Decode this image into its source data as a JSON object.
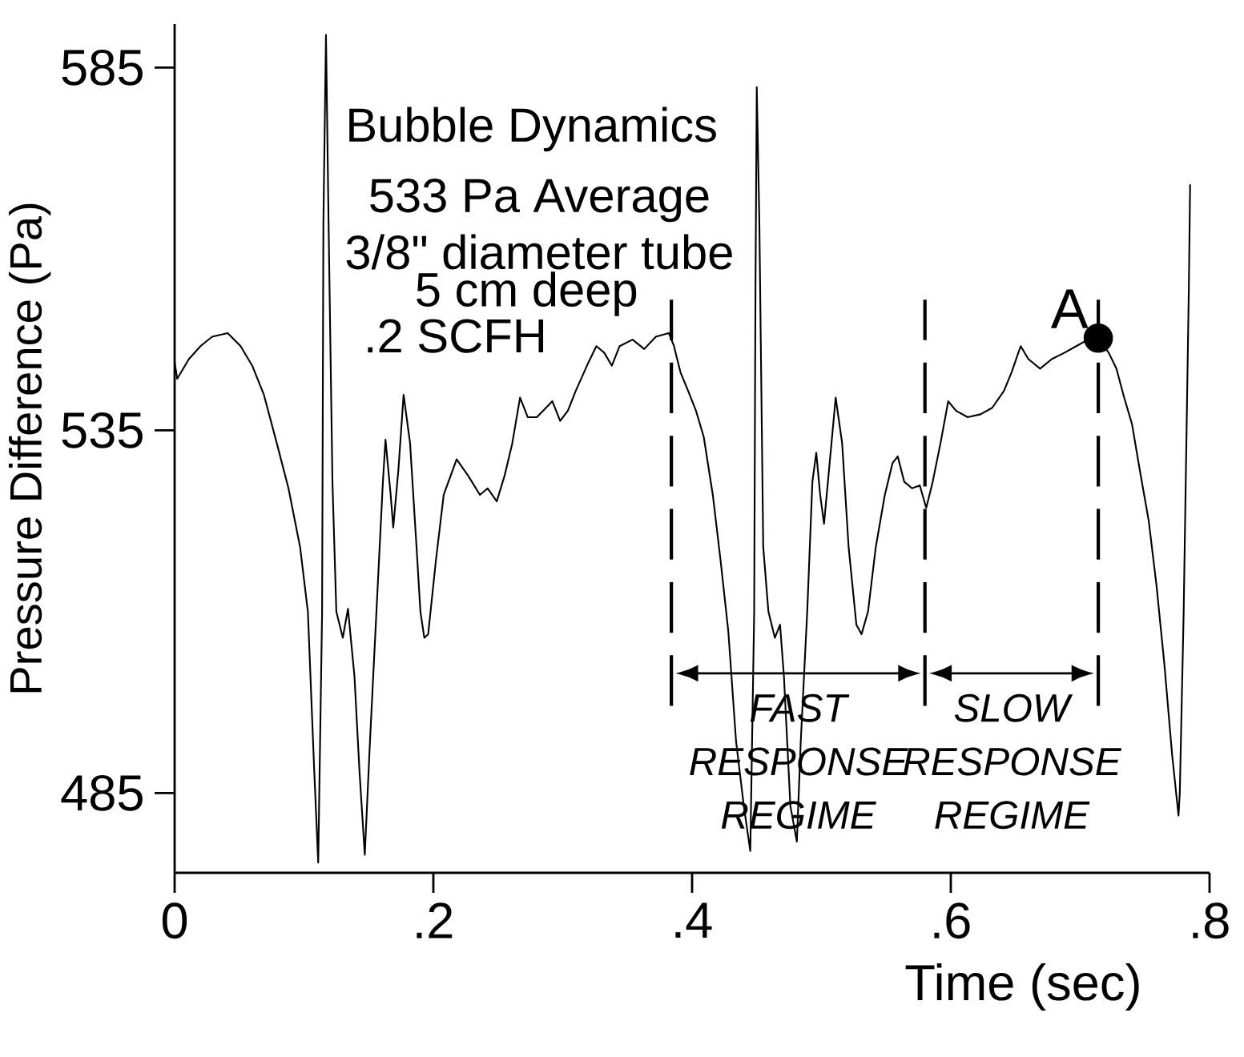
{
  "chart_data": {
    "type": "line",
    "xlabel": "Time (sec)",
    "ylabel": "Pressure Difference (Pa)",
    "annotations": [
      "Bubble Dynamics",
      "533 Pa Average",
      "3/8\" diameter tube",
      "5 cm deep",
      ".2   SCFH",
      {
        "text": "A",
        "x": 0.714,
        "y": 547.7
      },
      "FAST RESPONSE REGIME",
      "SLOW RESPONSE REGIME"
    ],
    "series": [
      {
        "type": "line",
        "color": "#000000",
        "line_style": "solid",
        "x": [
          0,
          0.002,
          0.011,
          0.02,
          0.029,
          0.041,
          0.051,
          0.06,
          0.069,
          0.079,
          0.088,
          0.097,
          0.103,
          0.108,
          0.111,
          0.114,
          0.115,
          0.117,
          0.119,
          0.122,
          0.125,
          0.13,
          0.134,
          0.139,
          0.143,
          0.147,
          0.151,
          0.156,
          0.161,
          0.163,
          0.167,
          0.169,
          0.173,
          0.177,
          0.182,
          0.187,
          0.19,
          0.193,
          0.196,
          0.202,
          0.208,
          0.218,
          0.227,
          0.236,
          0.242,
          0.249,
          0.255,
          0.261,
          0.267,
          0.273,
          0.28,
          0.292,
          0.298,
          0.304,
          0.31,
          0.32,
          0.326,
          0.332,
          0.338,
          0.344,
          0.354,
          0.363,
          0.372,
          0.382,
          0.386,
          0.391,
          0.397,
          0.403,
          0.409,
          0.416,
          0.422,
          0.428,
          0.434,
          0.44,
          0.445,
          0.448,
          0.449,
          0.45,
          0.452,
          0.455,
          0.459,
          0.464,
          0.468,
          0.471,
          0.476,
          0.481,
          0.484,
          0.489,
          0.493,
          0.496,
          0.499,
          0.502,
          0.505,
          0.511,
          0.516,
          0.521,
          0.527,
          0.531,
          0.536,
          0.542,
          0.549,
          0.555,
          0.559,
          0.564,
          0.57,
          0.576,
          0.581,
          0.586,
          0.592,
          0.598,
          0.604,
          0.613,
          0.623,
          0.632,
          0.641,
          0.647,
          0.654,
          0.66,
          0.669,
          0.678,
          0.688,
          0.697,
          0.706,
          0.714,
          0.722,
          0.728,
          0.734,
          0.74,
          0.746,
          0.753,
          0.759,
          0.765,
          0.771,
          0.776,
          0.777,
          0.78,
          0.784,
          0.785
        ],
        "values": [
          544.4,
          542.1,
          544.8,
          546.6,
          547.9,
          548.4,
          546.6,
          543.9,
          539.9,
          533.2,
          527,
          518.9,
          510,
          487.7,
          475.4,
          510,
          563.6,
          589.5,
          563.6,
          527.9,
          510,
          506.4,
          510.4,
          501.1,
          487.7,
          476.5,
          492.1,
          510,
          527.9,
          533.7,
          526.1,
          521.6,
          529.6,
          539.9,
          533.2,
          518.9,
          510,
          506.4,
          506.9,
          517.1,
          526.1,
          531,
          528.7,
          526.1,
          527,
          525.2,
          528.7,
          533.2,
          539.5,
          536.8,
          536.8,
          539,
          536.3,
          537.7,
          540.4,
          544.4,
          546.6,
          545.7,
          543.9,
          546.6,
          547.5,
          546.2,
          547.9,
          548.4,
          546.6,
          543,
          540.4,
          537.7,
          534.1,
          526.1,
          517.1,
          507.3,
          492.1,
          483.2,
          477,
          510,
          554.6,
          582.3,
          563.6,
          518.9,
          510,
          506.4,
          508.2,
          501.1,
          483.2,
          478.3,
          492.1,
          510,
          527.9,
          531.9,
          526.1,
          522.1,
          527.9,
          539.5,
          533.2,
          518.9,
          508.2,
          506.9,
          510,
          518.9,
          526.1,
          530.5,
          531.4,
          527.9,
          527,
          527.4,
          524.3,
          527.9,
          533.2,
          539,
          537.7,
          536.8,
          537.2,
          538.1,
          540.4,
          543,
          546.6,
          544.8,
          543.5,
          544.8,
          545.7,
          546.6,
          547.5,
          547.7,
          545.7,
          543.5,
          539.5,
          535.9,
          529.6,
          522.5,
          513.6,
          502.9,
          490.4,
          481.9,
          485,
          510,
          554.6,
          568.9
        ]
      },
      {
        "type": "scatter",
        "color": "#000000",
        "marker": "circle",
        "x": [
          0.714
        ],
        "values": [
          547.7
        ]
      }
    ],
    "xlim": [
      0,
      0.8
    ],
    "ylim": [
      474,
      591
    ],
    "xticks": [
      0,
      {
        "value": 0.2,
        "label": ".2"
      },
      {
        "value": 0.4,
        "label": ".4"
      },
      {
        "value": 0.6,
        "label": ".6"
      },
      {
        "value": 0.8,
        "label": ".8"
      }
    ],
    "yticks": [
      485,
      535,
      585
    ],
    "ref_lines": [
      {
        "axis": "x",
        "value": 0.384,
        "line_style": "dashed"
      },
      {
        "axis": "x",
        "value": 0.58,
        "line_style": "dashed"
      },
      {
        "axis": "x",
        "value": 0.714,
        "line_style": "dashed"
      }
    ],
    "grid": false
  }
}
